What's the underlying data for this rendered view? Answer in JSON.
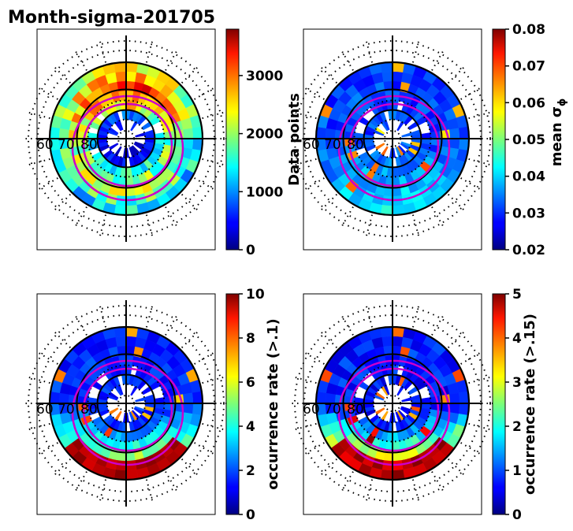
{
  "figure_title": "Month-sigma-201705",
  "chart_data": [
    {
      "type": "heatmap",
      "projection": "polar",
      "title": "Month-sigma-201705",
      "colorbar_label": "Data points",
      "colorbar_ticks": [
        "0",
        "1000",
        "2000",
        "3000"
      ],
      "colorbar_range": [
        0,
        3800
      ],
      "colormap": "jet",
      "lat_labels": [
        "60",
        "70",
        "80"
      ],
      "field": "count"
    },
    {
      "type": "heatmap",
      "projection": "polar",
      "colorbar_label": "mean σ",
      "colorbar_label_sub": "ϕ",
      "colorbar_ticks": [
        "0.02",
        "0.03",
        "0.04",
        "0.05",
        "0.06",
        "0.07",
        "0.08"
      ],
      "colorbar_range": [
        0.02,
        0.08
      ],
      "colormap": "jet",
      "lat_labels": [
        "60",
        "70",
        "80"
      ],
      "field": "mean"
    },
    {
      "type": "heatmap",
      "projection": "polar",
      "colorbar_label": "occurrence rate (>.1)",
      "colorbar_ticks": [
        "0",
        "2",
        "4",
        "6",
        "8",
        "10"
      ],
      "colorbar_range": [
        0,
        10
      ],
      "colormap": "jet",
      "lat_labels": [
        "60",
        "70",
        "80"
      ],
      "field": "occ1"
    },
    {
      "type": "heatmap",
      "projection": "polar",
      "colorbar_label": "occurrence rate (>.15)",
      "colorbar_ticks": [
        "0",
        "1",
        "2",
        "3",
        "4",
        "5"
      ],
      "colorbar_range": [
        0,
        5
      ],
      "colormap": "jet",
      "lat_labels": [
        "60",
        "70",
        "80"
      ],
      "field": "occ15"
    }
  ]
}
